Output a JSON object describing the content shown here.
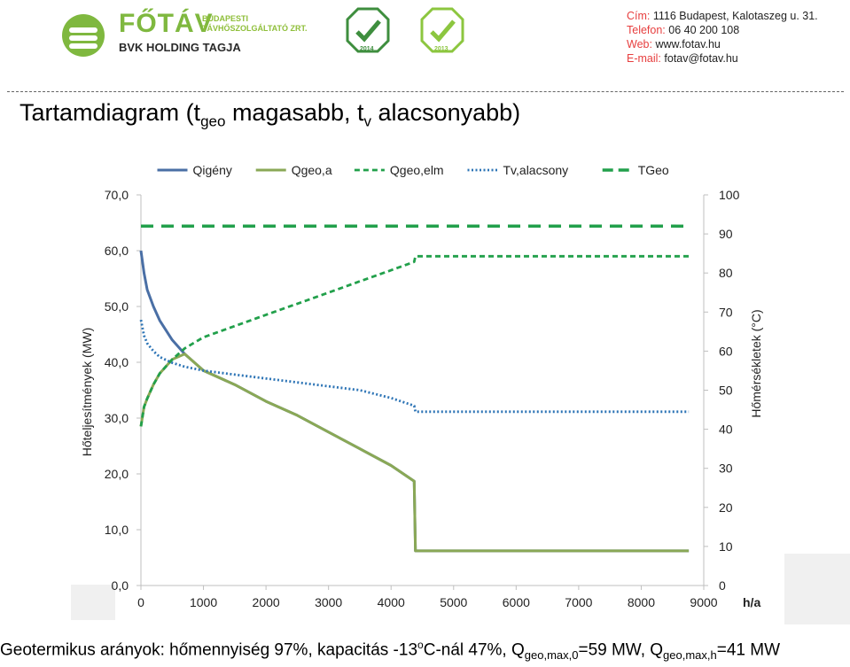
{
  "header": {
    "brand": "FŐTÁV",
    "brand_sub_line1": "BUDAPESTI",
    "brand_sub_line2": "TÁVHŐSZOLGÁLTATÓ ZRT.",
    "holding": "BVK HOLDING TAGJA",
    "award1_year": "2014",
    "award2_year": "2013",
    "award_icon": "checkmark-plug-icon",
    "brand_color": "#7fb83f",
    "contact_label_color": "#e73f3f",
    "contact": [
      {
        "label": "Cím:",
        "value": "1116 Budapest, Kalotaszeg u. 31."
      },
      {
        "label": "Telefon:",
        "value": "06 40 200 108"
      },
      {
        "label": "Web:",
        "value": "www.fotav.hu"
      },
      {
        "label": "E-mail:",
        "value": "fotav@fotav.hu"
      }
    ]
  },
  "title": {
    "main": "Tartamdiagram (t",
    "sub1": "geo",
    "mid": " magasabb, t",
    "sub2": "v",
    "end": " alacsonyabb)"
  },
  "footer": {
    "p1": "Geotermikus arányok: hőmennyiség 97%, kapacitás -13",
    "sup": "o",
    "p2": "C-nál 47%, Q",
    "sub1": "geo,max,0",
    "p3": "=59 MW, Q",
    "sub2": "geo,max,h",
    "p4": "=41 MW"
  },
  "chart_data": {
    "type": "line",
    "xlabel": "h/a",
    "ylabel": "Hőteljesítmények (MW)",
    "y2label": "Hőmérsékletek (°C)",
    "xlim": [
      0,
      9000
    ],
    "ylim": [
      0,
      70
    ],
    "y2lim": [
      0,
      100
    ],
    "x_ticks": [
      "0",
      "1000",
      "2000",
      "3000",
      "4000",
      "5000",
      "6000",
      "7000",
      "8000",
      "9000"
    ],
    "y_ticks": [
      "0,0",
      "10,0",
      "20,0",
      "30,0",
      "40,0",
      "50,0",
      "60,0",
      "70,0"
    ],
    "y2_ticks": [
      "0",
      "10",
      "20",
      "30",
      "40",
      "50",
      "60",
      "70",
      "80",
      "90",
      "100"
    ],
    "legend_position": "top",
    "grid": false,
    "series": [
      {
        "name": "Qigény",
        "axis": "left",
        "color": "#4a6fa5",
        "style": "solid",
        "x": [
          0,
          50,
          100,
          200,
          300,
          500,
          700,
          1000,
          1500,
          2000,
          2500,
          3000,
          3500,
          4000,
          4370,
          4390,
          8760
        ],
        "y": [
          60,
          56,
          53,
          50,
          47.5,
          44,
          41.5,
          38.5,
          36,
          33,
          30.5,
          27.5,
          24.5,
          21.5,
          18.7,
          6.2,
          6.2
        ]
      },
      {
        "name": "Qgeo,a",
        "axis": "left",
        "color": "#8aa856",
        "style": "solid",
        "x": [
          0,
          50,
          100,
          200,
          300,
          500,
          700,
          1000,
          1500,
          2000,
          2500,
          3000,
          3500,
          4000,
          4370,
          4390,
          8760
        ],
        "y": [
          28.5,
          32,
          33.5,
          36,
          38,
          40.5,
          41.5,
          38.5,
          36,
          33,
          30.5,
          27.5,
          24.5,
          21.5,
          18.7,
          6.2,
          6.2
        ]
      },
      {
        "name": "Qgeo,elm",
        "axis": "left",
        "color": "#22a04b",
        "style": "dashed",
        "x": [
          0,
          50,
          100,
          200,
          300,
          500,
          700,
          1000,
          1500,
          2000,
          2500,
          3000,
          3500,
          4000,
          4370,
          4390,
          8760
        ],
        "y": [
          28.5,
          32,
          33.5,
          36,
          38,
          40.5,
          42.5,
          44.5,
          46.5,
          48.5,
          50.5,
          52.5,
          54.5,
          56.5,
          58,
          59,
          59
        ]
      },
      {
        "name": "Tv,alacsony",
        "axis": "right",
        "color": "#2e75b6",
        "style": "dotted",
        "x": [
          0,
          50,
          100,
          200,
          300,
          500,
          700,
          1000,
          1500,
          2000,
          2500,
          3000,
          3500,
          4000,
          4370,
          4390,
          8760
        ],
        "y": [
          68,
          64,
          62,
          60,
          58.5,
          57,
          56,
          55,
          54,
          53,
          52,
          51,
          50,
          48,
          46,
          44.5,
          44.5
        ]
      },
      {
        "name": "TGeo",
        "axis": "right",
        "color": "#22a04b",
        "style": "longdash",
        "x": [
          0,
          8760
        ],
        "y": [
          92,
          92
        ]
      }
    ]
  }
}
